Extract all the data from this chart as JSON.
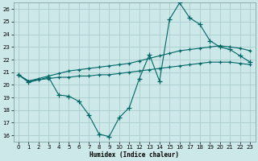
{
  "xlabel": "Humidex (Indice chaleur)",
  "bg_color": "#cce8e8",
  "grid_color": "#aacccc",
  "line_color": "#006666",
  "xlim": [
    -0.5,
    23.5
  ],
  "ylim": [
    15.5,
    26.5
  ],
  "xticks": [
    0,
    1,
    2,
    3,
    4,
    5,
    6,
    7,
    8,
    9,
    10,
    11,
    12,
    13,
    14,
    15,
    16,
    17,
    18,
    19,
    20,
    21,
    22,
    23
  ],
  "yticks": [
    16,
    17,
    18,
    19,
    20,
    21,
    22,
    23,
    24,
    25,
    26
  ],
  "zigzag_x": [
    0,
    1,
    3,
    4,
    5,
    6,
    7,
    8,
    9,
    10,
    11,
    12,
    13,
    14,
    15,
    16,
    17,
    18,
    19,
    20,
    21,
    22,
    23
  ],
  "zigzag_y": [
    20.8,
    20.2,
    20.6,
    19.2,
    19.1,
    18.7,
    17.6,
    16.1,
    15.9,
    17.4,
    18.2,
    20.5,
    22.4,
    20.3,
    25.2,
    26.5,
    25.3,
    24.8,
    23.5,
    23.0,
    22.8,
    22.3,
    21.8
  ],
  "upper_x": [
    0,
    1,
    2,
    3,
    4,
    5,
    6,
    7,
    8,
    9,
    10,
    11,
    12,
    13,
    14,
    15,
    16,
    17,
    18,
    19,
    20,
    21,
    22,
    23
  ],
  "upper_y": [
    20.8,
    20.3,
    20.5,
    20.7,
    20.9,
    21.1,
    21.2,
    21.3,
    21.4,
    21.5,
    21.6,
    21.7,
    21.9,
    22.1,
    22.3,
    22.5,
    22.7,
    22.8,
    22.9,
    23.0,
    23.1,
    23.0,
    22.9,
    22.7
  ],
  "lower_x": [
    0,
    1,
    2,
    3,
    4,
    5,
    6,
    7,
    8,
    9,
    10,
    11,
    12,
    13,
    14,
    15,
    16,
    17,
    18,
    19,
    20,
    21,
    22,
    23
  ],
  "lower_y": [
    20.8,
    20.3,
    20.4,
    20.5,
    20.6,
    20.6,
    20.7,
    20.7,
    20.8,
    20.8,
    20.9,
    21.0,
    21.1,
    21.2,
    21.3,
    21.4,
    21.5,
    21.6,
    21.7,
    21.8,
    21.8,
    21.8,
    21.7,
    21.6
  ]
}
